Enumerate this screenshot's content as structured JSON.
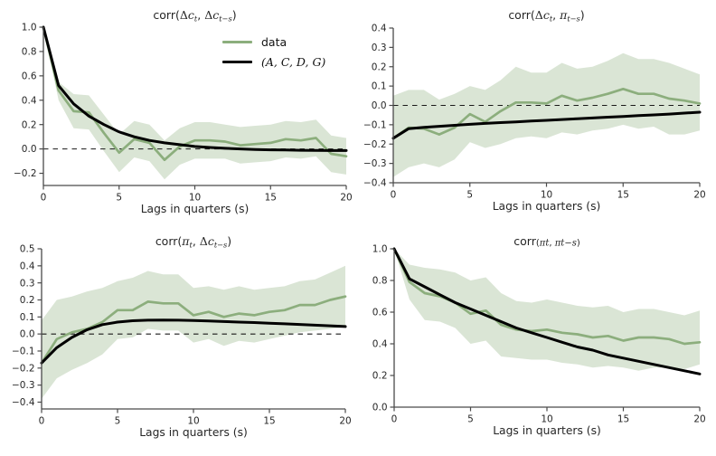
{
  "figure": {
    "background": "#ffffff"
  },
  "colors": {
    "data_line": "#8cae7d",
    "band_fill": "#8cae7d",
    "model_line": "#000000",
    "zero_line": "#1a1a1a",
    "axis": "#4a4a4a",
    "tick_label": "#262626"
  },
  "legend": {
    "items": [
      {
        "label": "data",
        "color": "#8cae7d",
        "math": false
      },
      {
        "label": "(A, C, D, G)",
        "color": "#000000",
        "math": true
      }
    ]
  },
  "chart_data": [
    {
      "id": "corr_dc_dc",
      "type": "line",
      "title_plain": "corr(Δc_t, Δc_{t−s})",
      "title_segments": [
        {
          "t": "corr(",
          "st": "rm"
        },
        {
          "t": "Δ",
          "st": "gk"
        },
        {
          "t": "c",
          "st": "it"
        },
        {
          "t": "t",
          "st": "sub"
        },
        {
          "t": ", ",
          "st": "rm"
        },
        {
          "t": "Δ",
          "st": "gk"
        },
        {
          "t": "c",
          "st": "it"
        },
        {
          "t": "t−s",
          "st": "sub"
        },
        {
          "t": ")",
          "st": "rm"
        }
      ],
      "xlabel": "Lags in quarters (s)",
      "ylim": [
        -0.3,
        1.0
      ],
      "grid": false,
      "legend_position": "upper right",
      "x": [
        0,
        1,
        2,
        3,
        4,
        5,
        6,
        7,
        8,
        9,
        10,
        11,
        12,
        13,
        14,
        15,
        16,
        17,
        18,
        19,
        20
      ],
      "xticks": {
        "values": [
          0,
          5,
          10,
          15,
          20
        ],
        "labels": [
          "0",
          "5",
          "10",
          "15",
          "20"
        ]
      },
      "yticks": {
        "values": [
          -0.2,
          0.0,
          0.2,
          0.4,
          0.6,
          0.8,
          1.0
        ],
        "labels": [
          "−0.2",
          "0.0",
          "0.2",
          "0.4",
          "0.6",
          "0.8",
          "1.0"
        ]
      },
      "zero_line": true,
      "series": [
        {
          "name": "data",
          "color": "#8cae7d",
          "width": 2.7,
          "values": [
            1.0,
            0.48,
            0.31,
            0.3,
            0.13,
            -0.03,
            0.08,
            0.05,
            -0.09,
            0.02,
            0.07,
            0.07,
            0.06,
            0.03,
            0.04,
            0.05,
            0.08,
            0.07,
            0.09,
            -0.04,
            -0.06
          ]
        },
        {
          "name": "(A, C, D, G)",
          "color": "#000000",
          "width": 3,
          "values": [
            1.0,
            0.52,
            0.37,
            0.27,
            0.2,
            0.14,
            0.1,
            0.07,
            0.05,
            0.035,
            0.02,
            0.012,
            0.005,
            0.0,
            -0.004,
            -0.007,
            -0.009,
            -0.011,
            -0.012,
            -0.013,
            -0.013
          ]
        }
      ],
      "band": {
        "series": "data",
        "upper": [
          1.0,
          0.55,
          0.45,
          0.44,
          0.28,
          0.12,
          0.23,
          0.2,
          0.07,
          0.17,
          0.22,
          0.22,
          0.2,
          0.18,
          0.19,
          0.2,
          0.23,
          0.22,
          0.24,
          0.11,
          0.09
        ],
        "lower": [
          1.0,
          0.4,
          0.17,
          0.16,
          -0.02,
          -0.19,
          -0.07,
          -0.1,
          -0.25,
          -0.13,
          -0.08,
          -0.08,
          -0.08,
          -0.12,
          -0.11,
          -0.1,
          -0.07,
          -0.08,
          -0.06,
          -0.19,
          -0.21
        ]
      }
    },
    {
      "id": "corr_dc_pi",
      "type": "line",
      "title_plain": "corr(Δc_t, π_{t−s})",
      "title_segments": [
        {
          "t": "corr(",
          "st": "rm"
        },
        {
          "t": "Δ",
          "st": "gk"
        },
        {
          "t": "c",
          "st": "it"
        },
        {
          "t": "t",
          "st": "sub"
        },
        {
          "t": ", ",
          "st": "rm"
        },
        {
          "t": "π",
          "st": "it"
        },
        {
          "t": "t−s",
          "st": "sub"
        },
        {
          "t": ")",
          "st": "rm"
        }
      ],
      "xlabel": "Lags in quarters (s)",
      "ylim": [
        -0.4,
        0.4
      ],
      "grid": false,
      "x": [
        0,
        1,
        2,
        3,
        4,
        5,
        6,
        7,
        8,
        9,
        10,
        11,
        12,
        13,
        14,
        15,
        16,
        17,
        18,
        19,
        20
      ],
      "xticks": {
        "values": [
          0,
          5,
          10,
          15,
          20
        ],
        "labels": [
          "0",
          "5",
          "10",
          "15",
          "20"
        ]
      },
      "yticks": {
        "values": [
          -0.4,
          -0.3,
          -0.2,
          -0.1,
          0.0,
          0.1,
          0.2,
          0.3,
          0.4
        ],
        "labels": [
          "−0.4",
          "−0.3",
          "−0.2",
          "−0.1",
          "0.0",
          "0.1",
          "0.2",
          "0.3",
          "0.4"
        ]
      },
      "zero_line": true,
      "series": [
        {
          "name": "data",
          "color": "#8cae7d",
          "width": 2.7,
          "values": [
            -0.17,
            -0.115,
            -0.12,
            -0.15,
            -0.115,
            -0.045,
            -0.085,
            -0.03,
            0.015,
            0.015,
            0.01,
            0.05,
            0.025,
            0.04,
            0.06,
            0.085,
            0.06,
            0.06,
            0.035,
            0.025,
            0.01
          ]
        },
        {
          "name": "(A, C, D, G)",
          "color": "#000000",
          "width": 3,
          "values": [
            -0.17,
            -0.12,
            -0.113,
            -0.108,
            -0.103,
            -0.098,
            -0.093,
            -0.089,
            -0.085,
            -0.081,
            -0.077,
            -0.073,
            -0.069,
            -0.065,
            -0.061,
            -0.057,
            -0.053,
            -0.049,
            -0.045,
            -0.04,
            -0.035
          ]
        }
      ],
      "band": {
        "series": "data",
        "upper": [
          0.05,
          0.08,
          0.08,
          0.03,
          0.06,
          0.1,
          0.08,
          0.13,
          0.2,
          0.17,
          0.17,
          0.22,
          0.19,
          0.2,
          0.23,
          0.27,
          0.24,
          0.24,
          0.22,
          0.19,
          0.16
        ],
        "lower": [
          -0.37,
          -0.32,
          -0.3,
          -0.32,
          -0.28,
          -0.19,
          -0.22,
          -0.2,
          -0.17,
          -0.16,
          -0.17,
          -0.14,
          -0.15,
          -0.13,
          -0.12,
          -0.1,
          -0.12,
          -0.11,
          -0.15,
          -0.15,
          -0.13
        ]
      }
    },
    {
      "id": "corr_pi_dc",
      "type": "line",
      "title_plain": "corr(π_t, Δc_{t−s})",
      "title_segments": [
        {
          "t": "corr(",
          "st": "rm"
        },
        {
          "t": "π",
          "st": "it"
        },
        {
          "t": "t",
          "st": "sub"
        },
        {
          "t": ", ",
          "st": "rm"
        },
        {
          "t": "Δ",
          "st": "gk"
        },
        {
          "t": "c",
          "st": "it"
        },
        {
          "t": "t−s",
          "st": "sub"
        },
        {
          "t": ")",
          "st": "rm"
        }
      ],
      "xlabel": "Lags in quarters (s)",
      "ylim": [
        -0.44,
        0.5
      ],
      "grid": false,
      "x": [
        0,
        1,
        2,
        3,
        4,
        5,
        6,
        7,
        8,
        9,
        10,
        11,
        12,
        13,
        14,
        15,
        16,
        17,
        18,
        19,
        20
      ],
      "xticks": {
        "values": [
          0,
          5,
          10,
          15,
          20
        ],
        "labels": [
          "0",
          "5",
          "10",
          "15",
          "20"
        ]
      },
      "yticks": {
        "values": [
          -0.4,
          -0.3,
          -0.2,
          -0.1,
          0.0,
          0.1,
          0.2,
          0.3,
          0.4,
          0.5
        ],
        "labels": [
          "−0.4",
          "−0.3",
          "−0.2",
          "−0.1",
          "0.0",
          "0.1",
          "0.2",
          "0.3",
          "0.4",
          "0.5"
        ]
      },
      "zero_line": true,
      "series": [
        {
          "name": "data",
          "color": "#8cae7d",
          "width": 2.7,
          "values": [
            -0.17,
            -0.03,
            0.01,
            0.03,
            0.07,
            0.14,
            0.14,
            0.19,
            0.18,
            0.18,
            0.11,
            0.13,
            0.1,
            0.12,
            0.11,
            0.13,
            0.14,
            0.17,
            0.17,
            0.2,
            0.22
          ]
        },
        {
          "name": "(A, C, D, G)",
          "color": "#000000",
          "width": 3,
          "values": [
            -0.17,
            -0.08,
            -0.02,
            0.025,
            0.055,
            0.07,
            0.078,
            0.081,
            0.082,
            0.081,
            0.079,
            0.076,
            0.073,
            0.07,
            0.067,
            0.063,
            0.06,
            0.056,
            0.052,
            0.048,
            0.044
          ]
        }
      ],
      "band": {
        "series": "data",
        "upper": [
          0.08,
          0.2,
          0.22,
          0.25,
          0.27,
          0.31,
          0.33,
          0.37,
          0.35,
          0.35,
          0.27,
          0.28,
          0.26,
          0.28,
          0.26,
          0.27,
          0.28,
          0.31,
          0.32,
          0.36,
          0.4
        ],
        "lower": [
          -0.38,
          -0.26,
          -0.21,
          -0.17,
          -0.12,
          -0.03,
          -0.02,
          0.03,
          0.02,
          0.02,
          -0.05,
          -0.03,
          -0.07,
          -0.04,
          -0.05,
          -0.03,
          -0.01,
          0.01,
          0.02,
          0.03,
          0.04
        ]
      }
    },
    {
      "id": "corr_pi_pi",
      "type": "line",
      "title_plain": "corr(π_t, π_{t−s})",
      "title_segments": [
        {
          "t": "corr",
          "st": "rm"
        },
        {
          "t": "(",
          "st": "rm",
          "sm": true
        },
        {
          "t": "π",
          "st": "it",
          "sm": true
        },
        {
          "t": "t",
          "st": "sub",
          "sm": true
        },
        {
          "t": ", ",
          "st": "rm",
          "sm": true
        },
        {
          "t": "π",
          "st": "it",
          "sm": true
        },
        {
          "t": "t−s",
          "st": "sub",
          "sm": true
        },
        {
          "t": ")",
          "st": "rm",
          "sm": true
        }
      ],
      "xlabel": "Lags in quarters (s)",
      "ylim": [
        0.0,
        1.0
      ],
      "grid": false,
      "x": [
        0,
        1,
        2,
        3,
        4,
        5,
        6,
        7,
        8,
        9,
        10,
        11,
        12,
        13,
        14,
        15,
        16,
        17,
        18,
        19,
        20
      ],
      "xticks": {
        "values": [
          0,
          5,
          10,
          15,
          20
        ],
        "labels": [
          "0",
          "5",
          "10",
          "15",
          "20"
        ]
      },
      "yticks": {
        "values": [
          0.0,
          0.2,
          0.4,
          0.6,
          0.8,
          1.0
        ],
        "labels": [
          "0.0",
          "0.2",
          "0.4",
          "0.6",
          "0.8",
          "1.0"
        ]
      },
      "zero_line": true,
      "series": [
        {
          "name": "data",
          "color": "#8cae7d",
          "width": 2.7,
          "values": [
            1.0,
            0.79,
            0.72,
            0.7,
            0.66,
            0.59,
            0.61,
            0.52,
            0.49,
            0.48,
            0.49,
            0.47,
            0.46,
            0.44,
            0.45,
            0.42,
            0.44,
            0.44,
            0.43,
            0.4,
            0.41
          ]
        },
        {
          "name": "(A, C, D, G)",
          "color": "#000000",
          "width": 3,
          "values": [
            1.0,
            0.81,
            0.76,
            0.71,
            0.66,
            0.62,
            0.58,
            0.54,
            0.5,
            0.47,
            0.44,
            0.41,
            0.38,
            0.36,
            0.33,
            0.31,
            0.29,
            0.27,
            0.25,
            0.23,
            0.21
          ]
        }
      ],
      "band": {
        "series": "data",
        "upper": [
          1.0,
          0.9,
          0.88,
          0.87,
          0.85,
          0.8,
          0.82,
          0.72,
          0.67,
          0.66,
          0.68,
          0.66,
          0.64,
          0.63,
          0.64,
          0.6,
          0.62,
          0.62,
          0.6,
          0.58,
          0.61
        ],
        "lower": [
          1.0,
          0.68,
          0.55,
          0.54,
          0.5,
          0.4,
          0.42,
          0.32,
          0.31,
          0.3,
          0.3,
          0.28,
          0.27,
          0.25,
          0.26,
          0.25,
          0.23,
          0.25,
          0.25,
          0.24,
          0.27
        ]
      }
    }
  ]
}
